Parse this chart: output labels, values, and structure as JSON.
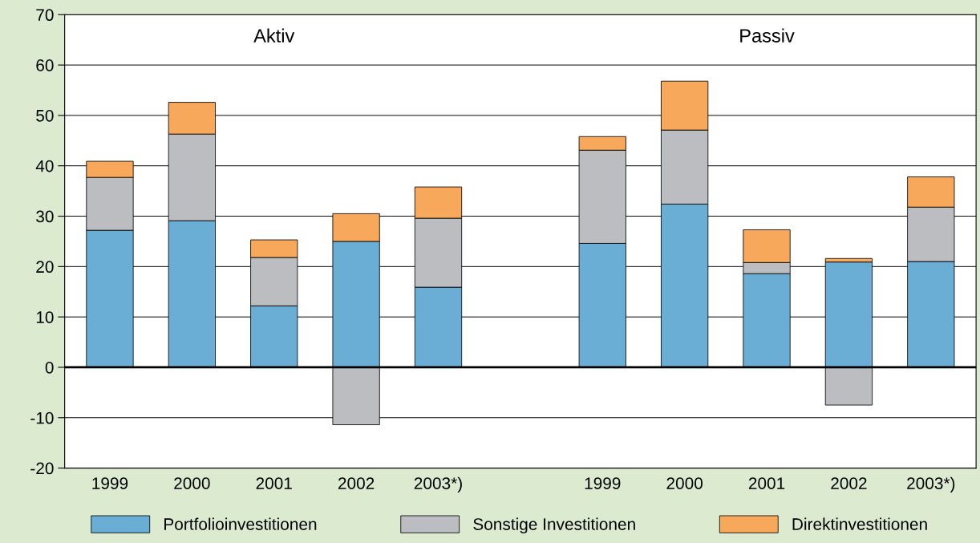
{
  "chart_data": {
    "type": "bar",
    "stacked": true,
    "categories": [
      "1999",
      "2000",
      "2001",
      "2002",
      "2003*)",
      null,
      "1999",
      "2000",
      "2001",
      "2002",
      "2003*)"
    ],
    "series": [
      {
        "name": "Portfolioinvestitionen",
        "color": "#6aaed6",
        "values": [
          27.2,
          29.1,
          12.2,
          25.0,
          15.9,
          null,
          24.6,
          32.4,
          18.6,
          20.9,
          21.0
        ]
      },
      {
        "name": "Sonstige Investitionen",
        "color": "#bcbdc0",
        "values": [
          10.5,
          17.2,
          9.6,
          -11.4,
          13.7,
          null,
          18.5,
          14.7,
          2.2,
          -7.5,
          10.8
        ]
      },
      {
        "name": "Direktinvestitionen",
        "color": "#f7a85a",
        "values": [
          3.2,
          6.3,
          3.5,
          5.5,
          6.2,
          null,
          2.7,
          9.7,
          6.5,
          0.7,
          6.0
        ]
      }
    ],
    "annotations": [
      "Aktiv",
      "Passiv"
    ],
    "ylim": [
      -20,
      70
    ],
    "yticks": [
      -20,
      -10,
      0,
      10,
      20,
      30,
      40,
      50,
      60,
      70
    ],
    "ref_lines": [
      {
        "axis": "y",
        "value": 0,
        "color": "#000000"
      }
    ],
    "grid": "y",
    "legend": "bottom"
  }
}
